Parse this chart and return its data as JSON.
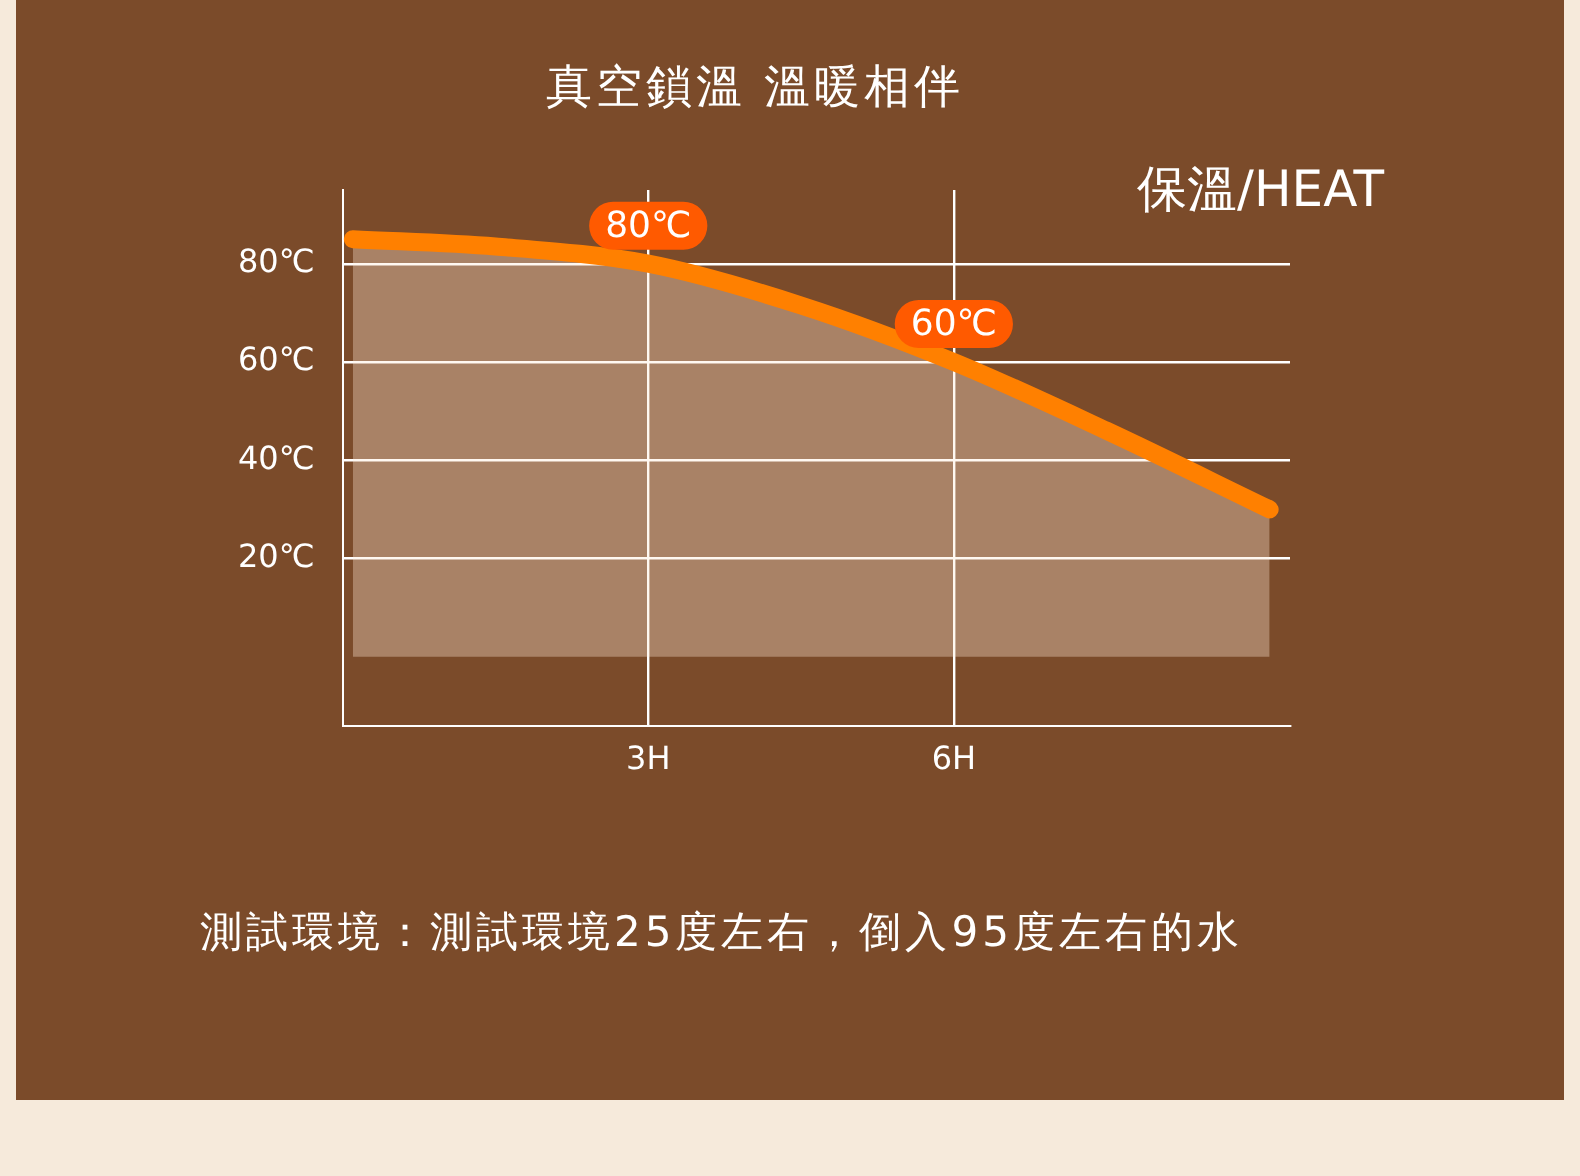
{
  "chart_data": {
    "type": "area",
    "title": "真空鎖溫 溫暖相伴",
    "subtitle": "保溫/HEAT",
    "x": [
      0.1,
      1.5,
      3,
      4.5,
      6,
      7.5,
      9.1
    ],
    "series": [
      {
        "color": "#ff8000",
        "values": [
          85,
          83.5,
          80,
          71.5,
          60,
          46,
          30
        ]
      }
    ],
    "xlim": [
      0,
      9.3
    ],
    "ylim": [
      -14,
      95
    ],
    "xticks": [
      {
        "value": 3,
        "label": "3H"
      },
      {
        "value": 6,
        "label": "6H"
      }
    ],
    "yticks": [
      {
        "value": 20,
        "label": "20℃"
      },
      {
        "value": 40,
        "label": "40℃"
      },
      {
        "value": 60,
        "label": "60℃"
      },
      {
        "value": 80,
        "label": "80℃"
      }
    ],
    "grid": true,
    "marker": "none",
    "annotations": [
      {
        "text": "80℃",
        "x": 3,
        "y": 80
      },
      {
        "text": "60℃",
        "x": 6,
        "y": 60
      },
      "測試環境：測試環境25度左右，倒入95度左右的水"
    ]
  }
}
